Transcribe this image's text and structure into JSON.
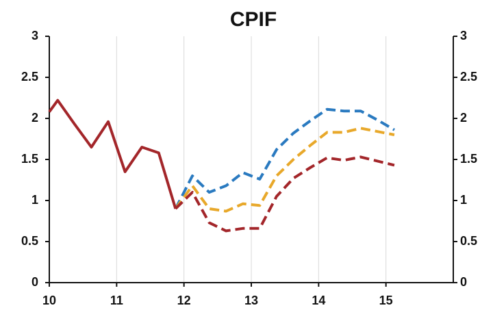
{
  "chart_data": {
    "type": "line",
    "title": "CPIF",
    "x": [
      10,
      10.125,
      10.375,
      10.625,
      10.875,
      11.125,
      11.375,
      11.625,
      11.875,
      12.125,
      12.375,
      12.625,
      12.875,
      13.125,
      13.375,
      13.625,
      13.875,
      14.125,
      14.375,
      14.625,
      14.875,
      15.125
    ],
    "series": [
      {
        "color": "#2a7ac0",
        "dashed": true,
        "values": [
          null,
          null,
          null,
          null,
          null,
          null,
          null,
          null,
          0.9,
          1.3,
          1.1,
          1.18,
          1.34,
          1.26,
          1.62,
          1.82,
          1.97,
          2.11,
          2.09,
          2.09,
          1.98,
          1.86
        ]
      },
      {
        "color": "#e8a82a",
        "dashed": true,
        "values": [
          null,
          null,
          null,
          null,
          null,
          null,
          null,
          null,
          0.9,
          1.18,
          0.9,
          0.87,
          0.96,
          0.94,
          1.3,
          1.5,
          1.67,
          1.83,
          1.83,
          1.88,
          1.84,
          1.8
        ]
      },
      {
        "color": "#a3262a",
        "dashed": true,
        "values": [
          null,
          null,
          null,
          null,
          null,
          null,
          null,
          null,
          0.9,
          1.1,
          0.73,
          0.63,
          0.66,
          0.66,
          1.05,
          1.27,
          1.4,
          1.52,
          1.49,
          1.53,
          1.48,
          1.43
        ]
      },
      {
        "color": "#a3262a",
        "dashed": false,
        "values": [
          2.08,
          2.22,
          1.93,
          1.65,
          1.96,
          1.35,
          1.65,
          1.58,
          0.9,
          null,
          null,
          null,
          null,
          null,
          null,
          null,
          null,
          null,
          null,
          null,
          null,
          null
        ]
      }
    ],
    "xlim": [
      10,
      16
    ],
    "xticks": [
      10,
      11,
      12,
      13,
      14,
      15
    ],
    "ylim": [
      0,
      3
    ],
    "yticks": [
      0,
      0.5,
      1,
      1.5,
      2,
      2.5,
      3
    ],
    "y2lim": [
      0,
      3
    ],
    "y2ticks": [
      0,
      0.5,
      1,
      1.5,
      2,
      2.5,
      3
    ],
    "grid": "x"
  }
}
